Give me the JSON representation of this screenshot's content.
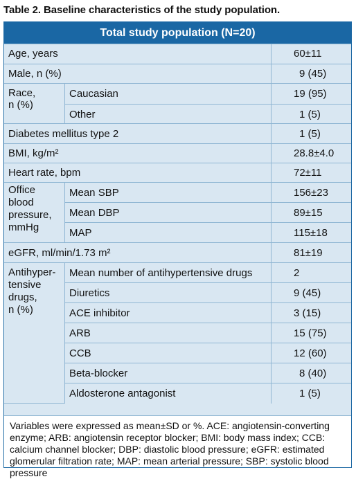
{
  "caption": "Table 2. Baseline characteristics of the study population.",
  "header": "Total study population (N=20)",
  "rows": {
    "age": {
      "label": "Age, years",
      "value": "60±11"
    },
    "male": {
      "label": "Male, n (%)",
      "value": "9 (45)"
    },
    "race": {
      "label": "Race,\nn (%)",
      "caucasian": "Caucasian",
      "caucasian_value": "19 (95)",
      "other": "Other",
      "other_value": "1 (5)"
    },
    "diabetes": {
      "label": "Diabetes mellitus type 2",
      "value": "1 (5)"
    },
    "bmi": {
      "label": "BMI, kg/m²",
      "value": "28.8±4.0"
    },
    "hr": {
      "label": "Heart rate, bpm",
      "value": "72±11"
    },
    "office_bp": {
      "label": "Office blood pressure, mmHg",
      "sbp": "Mean SBP",
      "sbp_value": "156±23",
      "dbp": "Mean DBP",
      "dbp_value": "89±15",
      "map": "MAP",
      "map_value": "115±18"
    },
    "egfr": {
      "label": "eGFR, ml/min/1.73 m²",
      "value": "81±19"
    },
    "drugs": {
      "label": "Antihyper-tensive drugs, n (%)",
      "items": [
        {
          "label": "Mean number of antihypertensive drugs",
          "value": "2"
        },
        {
          "label": "Diuretics",
          "value": "9 (45)"
        },
        {
          "label": "ACE inhibitor",
          "value": "3 (15)"
        },
        {
          "label": "ARB",
          "value": "15 (75)"
        },
        {
          "label": "CCB",
          "value": "12 (60)"
        },
        {
          "label": "Beta-blocker",
          "value": "8 (40)"
        },
        {
          "label": "Aldosterone antagonist",
          "value": "1 (5)"
        }
      ]
    }
  },
  "notes": "Variables were expressed as mean±SD or %. ACE: angiotensin-converting enzyme; ARB: angiotensin receptor blocker; BMI: body mass index; CCB: calcium channel blocker; DBP: diastolic blood pressure; eGFR: estimated glomerular filtration rate; MAP: mean arterial pressure; SBP: systolic blood pressure"
}
